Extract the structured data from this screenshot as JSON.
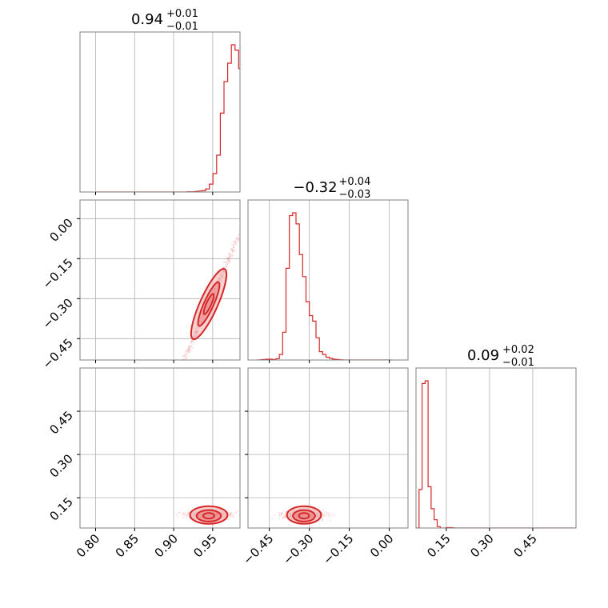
{
  "colors": {
    "accent": "#d62728",
    "grid": "#b0b0b0",
    "frame": "#808080",
    "fill_light": "#f4b6b6",
    "fill_mid": "#e98787"
  },
  "chart_data": {
    "type": "corner",
    "grid": true,
    "params": [
      {
        "title_value": "0.94",
        "title_plus": "+0.01",
        "title_minus": "−0.01",
        "range": [
          0.78,
          0.985
        ],
        "ticks": [
          0.8,
          0.85,
          0.9,
          0.95
        ],
        "tick_labels": [
          "0.80",
          "0.85",
          "0.90",
          "0.95"
        ]
      },
      {
        "title_value": "−0.32",
        "title_plus": "+0.04",
        "title_minus": "−0.03",
        "range": [
          -0.53,
          0.07
        ],
        "ticks": [
          -0.45,
          -0.3,
          -0.15,
          0.0
        ],
        "tick_labels": [
          "−0.45",
          "−0.30",
          "−0.15",
          "0.00"
        ]
      },
      {
        "title_value": "0.09",
        "title_plus": "+0.02",
        "title_minus": "−0.01",
        "range": [
          0.045,
          0.6
        ],
        "ticks": [
          0.15,
          0.3,
          0.45
        ],
        "tick_labels": [
          "0.15",
          "0.30",
          "0.45"
        ]
      }
    ],
    "histograms": [
      {
        "param": 0,
        "bin_start": 0.8,
        "bin_width": 0.0047,
        "counts": [
          0,
          0,
          0,
          0,
          0,
          0,
          0,
          0,
          0,
          0,
          0,
          0,
          0,
          0,
          0,
          0,
          0,
          0,
          0,
          0,
          0,
          0,
          0,
          0,
          0,
          1,
          1,
          2,
          4,
          5,
          12,
          30,
          70,
          140,
          300,
          420,
          490,
          560,
          540,
          470,
          380,
          260,
          190,
          110,
          60,
          30,
          10
        ]
      },
      {
        "param": 1,
        "bin_start": -0.5,
        "bin_width": 0.0125,
        "counts": [
          0,
          1,
          2,
          3,
          3,
          2,
          5,
          20,
          100,
          330,
          520,
          530,
          490,
          380,
          300,
          210,
          160,
          140,
          80,
          30,
          20,
          10,
          6,
          3,
          2,
          1,
          0,
          0,
          0,
          0,
          0,
          0,
          0,
          0,
          0,
          0,
          0,
          0,
          0,
          0,
          0
        ]
      },
      {
        "param": 2,
        "bin_start": 0.045,
        "bin_width": 0.0105,
        "counts": [
          0,
          280,
          1050,
          1070,
          300,
          140,
          60,
          10,
          0,
          0,
          3,
          3,
          1,
          0,
          0,
          0,
          0,
          0,
          0,
          0,
          0,
          0,
          0,
          0,
          0,
          0,
          0,
          0,
          0,
          0,
          0,
          0,
          0,
          0,
          0,
          0,
          0,
          0,
          0,
          0,
          0,
          0,
          0,
          0,
          0,
          0,
          0,
          0,
          0,
          0,
          0,
          0
        ]
      }
    ],
    "joint_distributions": [
      {
        "x_param": 0,
        "y_param": 1,
        "center": [
          0.945,
          -0.32
        ],
        "shape": "ridge",
        "slope": 6.5
      },
      {
        "x_param": 0,
        "y_param": 2,
        "center": [
          0.945,
          0.09
        ],
        "shape": "blob",
        "spread": [
          0.015,
          0.012
        ]
      },
      {
        "x_param": 1,
        "y_param": 2,
        "center": [
          -0.32,
          0.09
        ],
        "shape": "blob",
        "spread": [
          0.04,
          0.012
        ]
      }
    ]
  }
}
